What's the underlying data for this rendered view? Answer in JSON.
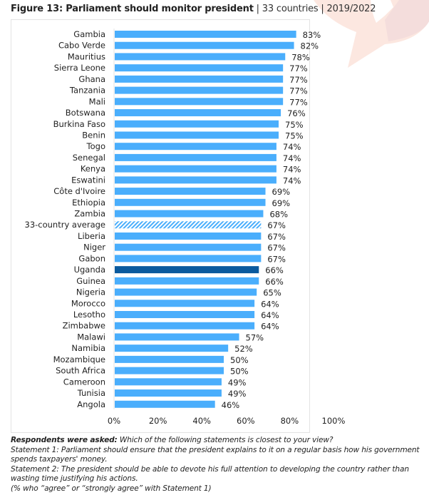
{
  "header": {
    "figure_title": "Figure 13: Parliament should monitor president",
    "separator": "|",
    "countries": "33 countries",
    "years": "2019/2022"
  },
  "colors": {
    "bar": "#4aaefc",
    "highlight": "#0a5a9e",
    "average_hatch": "#4aaefc",
    "watermark": "#f9ddd4"
  },
  "chart_data": {
    "type": "bar",
    "orientation": "horizontal",
    "title": "Parliament should monitor president",
    "xlabel": "",
    "ylabel": "",
    "xlim": [
      0,
      100
    ],
    "xticks": [
      "0%",
      "20%",
      "40%",
      "60%",
      "80%",
      "100%"
    ],
    "grid": false,
    "categories": [
      "Gambia",
      "Cabo Verde",
      "Mauritius",
      "Sierra Leone",
      "Ghana",
      "Tanzania",
      "Mali",
      "Botswana",
      "Burkina Faso",
      "Benin",
      "Togo",
      "Senegal",
      "Kenya",
      "Eswatini",
      "Côte d'Ivoire",
      "Ethiopia",
      "Zambia",
      "33-country average",
      "Liberia",
      "Niger",
      "Gabon",
      "Uganda",
      "Guinea",
      "Nigeria",
      "Morocco",
      "Lesotho",
      "Zimbabwe",
      "Malawi",
      "Namibia",
      "Mozambique",
      "South Africa",
      "Cameroon",
      "Tunisia",
      "Angola"
    ],
    "values": [
      83,
      82,
      78,
      77,
      77,
      77,
      77,
      76,
      75,
      75,
      74,
      74,
      74,
      74,
      69,
      69,
      68,
      67,
      67,
      67,
      67,
      66,
      66,
      65,
      64,
      64,
      64,
      57,
      52,
      50,
      50,
      49,
      49,
      46
    ],
    "labels": [
      "83%",
      "82%",
      "78%",
      "77%",
      "77%",
      "77%",
      "77%",
      "76%",
      "75%",
      "75%",
      "74%",
      "74%",
      "74%",
      "74%",
      "69%",
      "69%",
      "68%",
      "67%",
      "67%",
      "67%",
      "67%",
      "66%",
      "66%",
      "65%",
      "64%",
      "64%",
      "64%",
      "57%",
      "52%",
      "50%",
      "50%",
      "49%",
      "49%",
      "46%"
    ],
    "highlight": "Uganda",
    "average_category": "33-country average",
    "unit": "%"
  },
  "notes": {
    "question_label": "Respondents were asked:",
    "question": "Which of the following statements is closest to your view?",
    "statement1": "Statement 1: Parliament should ensure that the president explains to it on a regular basis how his government spends taxpayers' money.",
    "statement2": "Statement 2: The president should be able to devote his full attention to developing the country rather than wasting time justifying his actions.",
    "footnote": "(% who “agree” or “strongly agree” with Statement 1)"
  }
}
